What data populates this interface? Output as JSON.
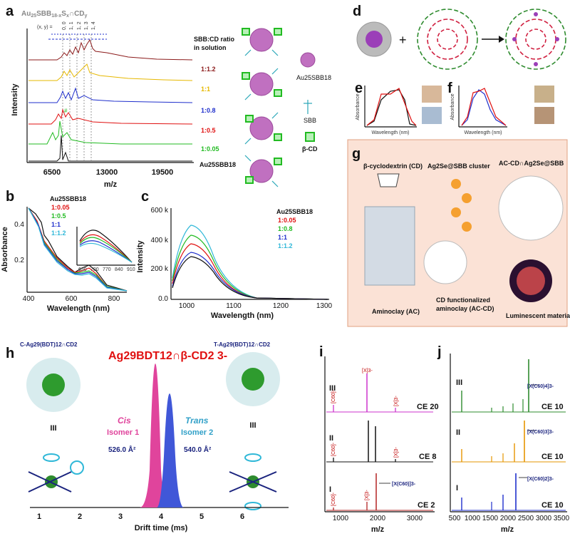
{
  "panels": {
    "a": {
      "letter": "a",
      "title_main": "Au",
      "title_sub1": "25",
      "title_mid": "SBB",
      "title_sub2": "18-x",
      "title_mid2": "S",
      "title_sub3": "x",
      "title_cap": "∩CD",
      "title_sub4": "y",
      "xy_label": "(x, y) =",
      "xy_values": [
        "0, 0",
        "1, 1",
        "1, 2",
        "1, 3",
        "1, 4"
      ],
      "ratio_header": "SBB:CD ratio",
      "ratio_header2": "in solution",
      "ratios": [
        {
          "label": "1:1.2",
          "color": "#8b1a1a"
        },
        {
          "label": "1:1",
          "color": "#e6b800"
        },
        {
          "label": "1:0.8",
          "color": "#1f2fcc"
        },
        {
          "label": "1:0.5",
          "color": "#e01010"
        },
        {
          "label": "1:0.05",
          "color": "#22bb22"
        }
      ],
      "baseline_label": "Au25SBB18",
      "ylabel": "Intensity",
      "xlabel": "m/z",
      "xticks": [
        "6500",
        "13000",
        "19500"
      ],
      "legend_au": "Au25SBB18",
      "legend_sbb": "SBB",
      "legend_cd": "β-CD"
    },
    "b": {
      "letter": "b",
      "ylabel": "Absorbance",
      "xlabel": "Wavelength (nm)",
      "xticks": [
        "400",
        "600",
        "800"
      ],
      "yticks": [
        "0.4",
        "0.2"
      ],
      "inset_xticks": [
        "630",
        "700",
        "770",
        "840",
        "910"
      ],
      "legend_title": "Au25SBB18"
    },
    "c": {
      "letter": "c",
      "ylabel": "Intensity",
      "xlabel": "Wavelength (nm)",
      "xticks": [
        "1000",
        "1100",
        "1200",
        "1300"
      ],
      "yticks": [
        "600 k",
        "400 k",
        "200 k",
        "0.0"
      ],
      "legend_title": "Au25SBB18"
    },
    "d": {
      "letter": "d"
    },
    "e": {
      "letter": "e",
      "ylabel": "Absorbance",
      "xlabel": "Wavelength (nm)"
    },
    "f": {
      "letter": "f",
      "ylabel": "Absorbance",
      "xlabel": "Wavelength (nm)"
    },
    "g": {
      "letter": "g",
      "cd_label": "β-cyclodextrin (CD)",
      "cluster_label": "Ag2Se@SBB cluster",
      "composite_label": "AC-CD∩Ag2Se@SBB",
      "aminoclay_label": "Aminoclay (AC)",
      "cdf_label1": "CD functionalized",
      "cdf_label2": "aminoclay (AC-CD)",
      "lum_label": "Luminescent material"
    },
    "h": {
      "letter": "h",
      "title": "Ag29BDT12∩β-CD2 3-",
      "left_struct": "C-Ag29(BDT)12∩CD2",
      "right_struct": "T-Ag29(BDT)12∩CD2",
      "cis_label": "Cis",
      "cis_sub": "Isomer 1",
      "trans_label": "Trans",
      "trans_sub": "Isomer 2",
      "cis_ccs": "526.0 Å²",
      "trans_ccs": "540.0 Å²",
      "xlabel": "Drift time (ms)",
      "xticks": [
        "1",
        "2",
        "3",
        "4",
        "5",
        "6"
      ],
      "sym": "III"
    },
    "i": {
      "letter": "i",
      "rows": [
        {
          "roman": "III",
          "ce": "CE 20",
          "color": "#cc33cc"
        },
        {
          "roman": "II",
          "ce": "CE 8",
          "color": "#111111"
        },
        {
          "roman": "I",
          "ce": "CE 2",
          "color": "#b22222"
        }
      ],
      "peak_c60": "[C60]-",
      "peak_x": "[X]3-",
      "peak_xc60": "[X(C60)]3-",
      "xlabel": "m/z",
      "xticks": [
        "1000",
        "2000",
        "3000"
      ]
    },
    "j": {
      "letter": "j",
      "rows": [
        {
          "roman": "III",
          "ce": "CE 10",
          "color": "#2e8b2e",
          "arrow": "[X(C60)4]3-"
        },
        {
          "roman": "II",
          "ce": "CE 10",
          "color": "#e69500",
          "arrow": "[X(C60)3]3-"
        },
        {
          "roman": "I",
          "ce": "CE 10",
          "color": "#1f2fcc",
          "arrow": "[X(C60)2]3-"
        }
      ],
      "xlabel": "m/z",
      "xticks": [
        "500",
        "1000",
        "1500",
        "2000",
        "2500",
        "3000",
        "3500"
      ]
    }
  }
}
